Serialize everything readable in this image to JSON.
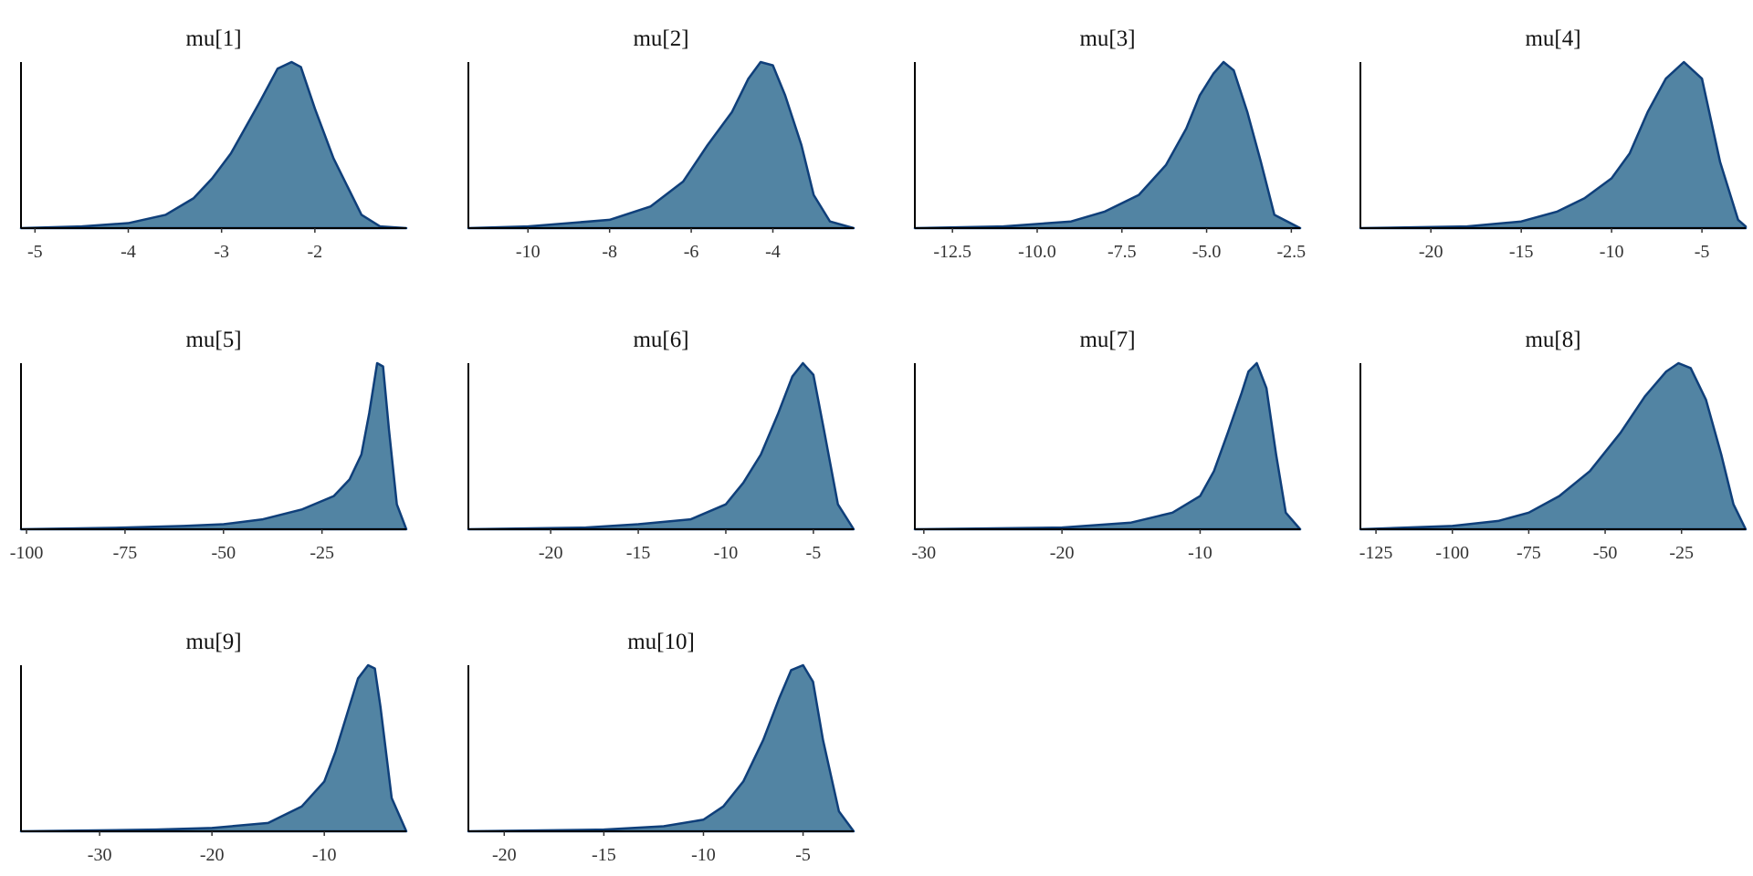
{
  "chart_data": [
    {
      "type": "area",
      "title": "mu[1]",
      "color": "#5284a3",
      "line_color": "#0f3f7a",
      "xlim": [
        -5.15,
        -1.02
      ],
      "ylim": [
        0,
        1
      ],
      "xticks": [
        -5,
        -4,
        -3,
        -2
      ],
      "x": [
        -5.15,
        -4.5,
        -4,
        -3.6,
        -3.3,
        -3.1,
        -2.9,
        -2.6,
        -2.4,
        -2.25,
        -2.15,
        -2,
        -1.8,
        -1.5,
        -1.3,
        -1.02
      ],
      "values": [
        0,
        0.01,
        0.03,
        0.08,
        0.18,
        0.3,
        0.45,
        0.75,
        0.96,
        1,
        0.97,
        0.72,
        0.42,
        0.08,
        0.01,
        0
      ]
    },
    {
      "type": "area",
      "title": "mu[2]",
      "color": "#5284a3",
      "line_color": "#0f3f7a",
      "xlim": [
        -11.46,
        -2.02
      ],
      "ylim": [
        0,
        1
      ],
      "xticks": [
        -10,
        -8,
        -6,
        -4
      ],
      "x": [
        -11.46,
        -10,
        -8,
        -7,
        -6.2,
        -5.6,
        -5,
        -4.6,
        -4.3,
        -4,
        -3.7,
        -3.3,
        -3,
        -2.6,
        -2.02
      ],
      "values": [
        0,
        0.01,
        0.05,
        0.13,
        0.28,
        0.5,
        0.7,
        0.9,
        1,
        0.98,
        0.8,
        0.5,
        0.2,
        0.04,
        0
      ]
    },
    {
      "type": "area",
      "title": "mu[3]",
      "color": "#5284a3",
      "line_color": "#0f3f7a",
      "xlim": [
        -13.61,
        -2.24
      ],
      "ylim": [
        0,
        1
      ],
      "xticks": [
        -12.5,
        {
          "value": -10,
          "label": "-10.0"
        },
        -7.5,
        {
          "value": -5,
          "label": "-5.0"
        },
        -2.5
      ],
      "x": [
        -13.61,
        -11,
        -9,
        -8,
        -7,
        -6.2,
        -5.6,
        -5.2,
        -4.8,
        -4.5,
        -4.2,
        -3.8,
        -3.4,
        -3,
        -2.24
      ],
      "values": [
        0,
        0.01,
        0.04,
        0.1,
        0.2,
        0.38,
        0.6,
        0.8,
        0.93,
        1,
        0.95,
        0.7,
        0.4,
        0.08,
        0
      ]
    },
    {
      "type": "area",
      "title": "mu[4]",
      "color": "#5284a3",
      "line_color": "#0f3f7a",
      "xlim": [
        -23.9,
        -2.58
      ],
      "ylim": [
        0,
        1
      ],
      "xticks": [
        -20,
        -15,
        -10,
        -5
      ],
      "x": [
        -23.9,
        -18,
        -15,
        -13,
        -11.5,
        -10,
        -9,
        -8,
        -7,
        -6,
        -5,
        -4,
        -3,
        -2.58
      ],
      "values": [
        0,
        0.01,
        0.04,
        0.1,
        0.18,
        0.3,
        0.45,
        0.7,
        0.9,
        1,
        0.9,
        0.4,
        0.05,
        0.01
      ]
    },
    {
      "type": "area",
      "title": "mu[5]",
      "color": "#5284a3",
      "line_color": "#0f3f7a",
      "xlim": [
        -101.4,
        -3.6
      ],
      "ylim": [
        0,
        1
      ],
      "xticks": [
        -100,
        -75,
        -50,
        -25
      ],
      "x": [
        -101.4,
        -75,
        -60,
        -50,
        -40,
        -30,
        -22,
        -18,
        -15,
        -13,
        -11,
        -9.5,
        -8,
        -6,
        -3.6
      ],
      "values": [
        0,
        0.01,
        0.02,
        0.03,
        0.06,
        0.12,
        0.2,
        0.3,
        0.45,
        0.7,
        1,
        0.98,
        0.6,
        0.15,
        0
      ]
    },
    {
      "type": "area",
      "title": "mu[6]",
      "color": "#5284a3",
      "line_color": "#0f3f7a",
      "xlim": [
        -24.7,
        -2.7
      ],
      "ylim": [
        0,
        1
      ],
      "xticks": [
        -20,
        -15,
        -10,
        -5
      ],
      "x": [
        -24.7,
        -18,
        -15,
        -12,
        -10,
        -9,
        -8,
        -7,
        -6.2,
        -5.6,
        -5,
        -4.4,
        -3.6,
        -2.7
      ],
      "values": [
        0,
        0.01,
        0.03,
        0.06,
        0.15,
        0.28,
        0.45,
        0.7,
        0.92,
        1,
        0.93,
        0.6,
        0.15,
        0
      ]
    },
    {
      "type": "area",
      "title": "mu[7]",
      "color": "#5284a3",
      "line_color": "#0f3f7a",
      "xlim": [
        -30.65,
        -2.76
      ],
      "ylim": [
        0,
        1
      ],
      "xticks": [
        -30,
        -20,
        -10
      ],
      "x": [
        -30.65,
        -20,
        -15,
        -12,
        -10,
        -9,
        -8,
        -7,
        -6.5,
        -5.9,
        -5.2,
        -4.5,
        -3.8,
        -2.76
      ],
      "values": [
        0,
        0.01,
        0.04,
        0.1,
        0.2,
        0.35,
        0.58,
        0.82,
        0.95,
        1,
        0.85,
        0.45,
        0.1,
        0
      ]
    },
    {
      "type": "area",
      "title": "mu[8]",
      "color": "#5284a3",
      "line_color": "#0f3f7a",
      "xlim": [
        -130.1,
        -4
      ],
      "ylim": [
        0,
        1
      ],
      "xticks": [
        -125,
        -100,
        -75,
        -50,
        -25
      ],
      "x": [
        -130.1,
        -100,
        -85,
        -75,
        -65,
        -55,
        -45,
        -37,
        -30,
        -26,
        -22,
        -17,
        -12,
        -8,
        -4
      ],
      "values": [
        0,
        0.02,
        0.05,
        0.1,
        0.2,
        0.35,
        0.58,
        0.8,
        0.95,
        1,
        0.97,
        0.78,
        0.45,
        0.15,
        0
      ]
    },
    {
      "type": "area",
      "title": "mu[9]",
      "color": "#5284a3",
      "line_color": "#0f3f7a",
      "xlim": [
        -37,
        -2.7
      ],
      "ylim": [
        0,
        1
      ],
      "xticks": [
        -30,
        -20,
        -10
      ],
      "x": [
        -37,
        -25,
        -20,
        -15,
        -12,
        -10,
        -9,
        -8,
        -7,
        -6.1,
        -5.5,
        -5,
        -4,
        -2.7
      ],
      "values": [
        0,
        0.01,
        0.02,
        0.05,
        0.15,
        0.3,
        0.48,
        0.7,
        0.92,
        1,
        0.98,
        0.75,
        0.2,
        0
      ]
    },
    {
      "type": "area",
      "title": "mu[10]",
      "color": "#5284a3",
      "line_color": "#0f3f7a",
      "xlim": [
        -21.8,
        -2.46
      ],
      "ylim": [
        0,
        1
      ],
      "xticks": [
        -20,
        -15,
        -10,
        -5
      ],
      "x": [
        -21.8,
        -15,
        -12,
        -10,
        -9,
        -8,
        -7,
        -6.2,
        -5.6,
        -5,
        -4.5,
        -4,
        -3.2,
        -2.46
      ],
      "values": [
        0,
        0.01,
        0.03,
        0.07,
        0.15,
        0.3,
        0.55,
        0.8,
        0.97,
        1,
        0.9,
        0.55,
        0.12,
        0
      ]
    }
  ]
}
